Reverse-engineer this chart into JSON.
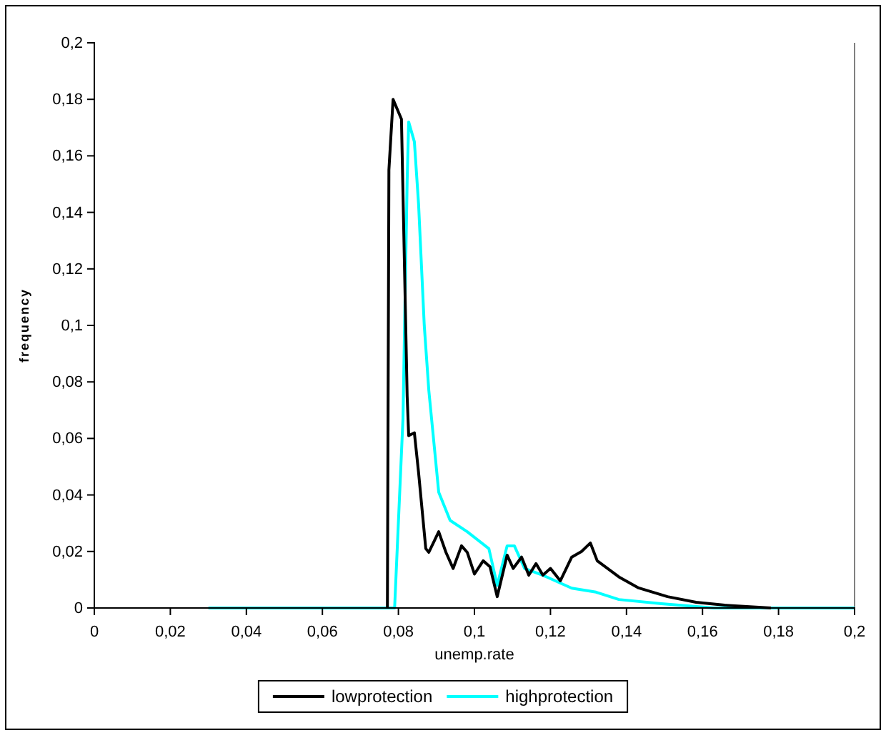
{
  "chart_data": {
    "type": "line",
    "xlabel": "unemp.rate",
    "ylabel": "frequency",
    "xlim": [
      0,
      0.2
    ],
    "ylim": [
      0,
      0.2
    ],
    "xticks": [
      0,
      {
        "value": 0.02,
        "label": "0,02"
      },
      {
        "value": 0.04,
        "label": "0,04"
      },
      {
        "value": 0.06,
        "label": "0,06"
      },
      {
        "value": 0.08,
        "label": "0,08"
      },
      {
        "value": 0.1,
        "label": "0,1"
      },
      {
        "value": 0.12,
        "label": "0,12"
      },
      {
        "value": 0.14,
        "label": "0,14"
      },
      {
        "value": 0.16,
        "label": "0,16"
      },
      {
        "value": 0.18,
        "label": "0,18"
      },
      {
        "value": 0.2,
        "label": "0,2"
      }
    ],
    "yticks": [
      0,
      {
        "value": 0.02,
        "label": "0,02"
      },
      {
        "value": 0.04,
        "label": "0,04"
      },
      {
        "value": 0.06,
        "label": "0,06"
      },
      {
        "value": 0.08,
        "label": "0,08"
      },
      {
        "value": 0.1,
        "label": "0,1"
      },
      {
        "value": 0.12,
        "label": "0,12"
      },
      {
        "value": 0.14,
        "label": "0,14"
      },
      {
        "value": 0.16,
        "label": "0,16"
      },
      {
        "value": 0.18,
        "label": "0,18"
      },
      {
        "value": 0.2,
        "label": "0,2"
      }
    ],
    "grid": false,
    "legend": "bottom",
    "marker": "none",
    "line_style": "solid",
    "series": [
      {
        "name": "lowprotection",
        "color": "#000000",
        "x": [
          0.0771,
          0.0775,
          0.0786,
          0.0808,
          0.0823,
          0.0827,
          0.0842,
          0.0853,
          0.0872,
          0.088,
          0.0906,
          0.0925,
          0.0944,
          0.0966,
          0.0981,
          0.1,
          0.1023,
          0.1041,
          0.106,
          0.1086,
          0.1102,
          0.1124,
          0.1143,
          0.1162,
          0.118,
          0.12,
          0.1226,
          0.1256,
          0.1282,
          0.1305,
          0.1323,
          0.138,
          0.1432,
          0.1508,
          0.1583,
          0.1658,
          0.178
        ],
        "values": [
          0,
          0.155,
          0.18,
          0.173,
          0.075,
          0.061,
          0.062,
          0.048,
          0.021,
          0.0197,
          0.027,
          0.0197,
          0.014,
          0.022,
          0.0197,
          0.012,
          0.0167,
          0.0146,
          0.004,
          0.0187,
          0.014,
          0.018,
          0.0116,
          0.0157,
          0.0116,
          0.014,
          0.0096,
          0.018,
          0.02,
          0.023,
          0.0167,
          0.011,
          0.0071,
          0.004,
          0.002,
          0.001,
          0
        ]
      },
      {
        "name": "highprotection",
        "color": "#00ffff",
        "x": [
          0.03,
          0.079,
          0.0812,
          0.0823,
          0.0827,
          0.0842,
          0.0853,
          0.0868,
          0.088,
          0.0906,
          0.0936,
          0.0981,
          0.1038,
          0.106,
          0.1086,
          0.1105,
          0.1132,
          0.118,
          0.1256,
          0.132,
          0.138,
          0.1492,
          0.163,
          0.2
        ],
        "values": [
          0,
          0,
          0.067,
          0.151,
          0.172,
          0.165,
          0.143,
          0.1,
          0.077,
          0.041,
          0.031,
          0.027,
          0.021,
          0.008,
          0.022,
          0.022,
          0.014,
          0.0116,
          0.007,
          0.0056,
          0.003,
          0.0015,
          0,
          0
        ]
      }
    ]
  }
}
